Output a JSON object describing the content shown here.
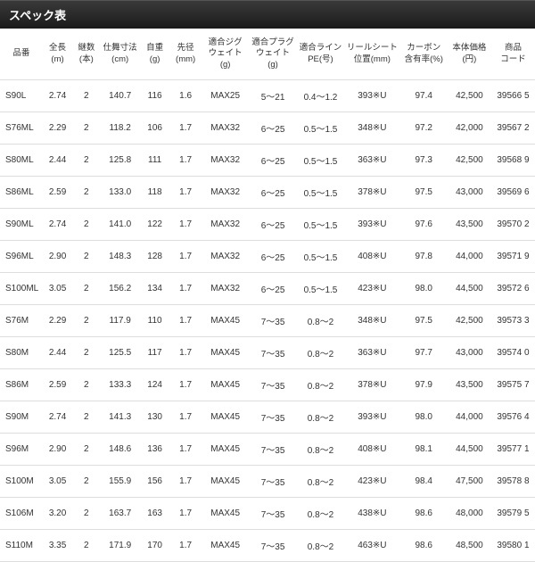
{
  "header_title": "スペック表",
  "columns": [
    {
      "l1": "品番",
      "l2": ""
    },
    {
      "l1": "全長",
      "l2": "(m)"
    },
    {
      "l1": "継数",
      "l2": "(本)"
    },
    {
      "l1": "仕舞寸法",
      "l2": "(cm)"
    },
    {
      "l1": "自重",
      "l2": "(g)"
    },
    {
      "l1": "先径",
      "l2": "(mm)"
    },
    {
      "l1": "適合ジグ",
      "l2": "ウェイト(g)"
    },
    {
      "l1": "適合プラグ",
      "l2": "ウェイト(g)"
    },
    {
      "l1": "適合ライン",
      "l2": "PE(号)"
    },
    {
      "l1": "リールシート",
      "l2": "位置(mm)"
    },
    {
      "l1": "カーボン",
      "l2": "含有率(%)"
    },
    {
      "l1": "本体価格",
      "l2": "(円)"
    },
    {
      "l1": "商品",
      "l2": "コード"
    }
  ],
  "rows": [
    [
      "S90L",
      "2.74",
      "2",
      "140.7",
      "116",
      "1.6",
      "MAX25",
      "5～21",
      "0.4～1.2",
      "393※U",
      "97.4",
      "42,500",
      "39566 5"
    ],
    [
      "S76ML",
      "2.29",
      "2",
      "118.2",
      "106",
      "1.7",
      "MAX32",
      "6～25",
      "0.5～1.5",
      "348※U",
      "97.2",
      "42,000",
      "39567 2"
    ],
    [
      "S80ML",
      "2.44",
      "2",
      "125.8",
      "111",
      "1.7",
      "MAX32",
      "6～25",
      "0.5～1.5",
      "363※U",
      "97.3",
      "42,500",
      "39568 9"
    ],
    [
      "S86ML",
      "2.59",
      "2",
      "133.0",
      "118",
      "1.7",
      "MAX32",
      "6～25",
      "0.5～1.5",
      "378※U",
      "97.5",
      "43,000",
      "39569 6"
    ],
    [
      "S90ML",
      "2.74",
      "2",
      "141.0",
      "122",
      "1.7",
      "MAX32",
      "6～25",
      "0.5～1.5",
      "393※U",
      "97.6",
      "43,500",
      "39570 2"
    ],
    [
      "S96ML",
      "2.90",
      "2",
      "148.3",
      "128",
      "1.7",
      "MAX32",
      "6～25",
      "0.5～1.5",
      "408※U",
      "97.8",
      "44,000",
      "39571 9"
    ],
    [
      "S100ML",
      "3.05",
      "2",
      "156.2",
      "134",
      "1.7",
      "MAX32",
      "6～25",
      "0.5～1.5",
      "423※U",
      "98.0",
      "44,500",
      "39572 6"
    ],
    [
      "S76M",
      "2.29",
      "2",
      "117.9",
      "110",
      "1.7",
      "MAX45",
      "7～35",
      "0.8～2",
      "348※U",
      "97.5",
      "42,500",
      "39573 3"
    ],
    [
      "S80M",
      "2.44",
      "2",
      "125.5",
      "117",
      "1.7",
      "MAX45",
      "7～35",
      "0.8～2",
      "363※U",
      "97.7",
      "43,000",
      "39574 0"
    ],
    [
      "S86M",
      "2.59",
      "2",
      "133.3",
      "124",
      "1.7",
      "MAX45",
      "7～35",
      "0.8～2",
      "378※U",
      "97.9",
      "43,500",
      "39575 7"
    ],
    [
      "S90M",
      "2.74",
      "2",
      "141.3",
      "130",
      "1.7",
      "MAX45",
      "7～35",
      "0.8～2",
      "393※U",
      "98.0",
      "44,000",
      "39576 4"
    ],
    [
      "S96M",
      "2.90",
      "2",
      "148.6",
      "136",
      "1.7",
      "MAX45",
      "7～35",
      "0.8～2",
      "408※U",
      "98.1",
      "44,500",
      "39577 1"
    ],
    [
      "S100M",
      "3.05",
      "2",
      "155.9",
      "156",
      "1.7",
      "MAX45",
      "7～35",
      "0.8～2",
      "423※U",
      "98.4",
      "47,500",
      "39578 8"
    ],
    [
      "S106M",
      "3.20",
      "2",
      "163.7",
      "163",
      "1.7",
      "MAX45",
      "7～35",
      "0.8～2",
      "438※U",
      "98.6",
      "48,000",
      "39579 5"
    ],
    [
      "S110M",
      "3.35",
      "2",
      "171.9",
      "170",
      "1.7",
      "MAX45",
      "7～35",
      "0.8～2",
      "463※U",
      "98.6",
      "48,500",
      "39580 1"
    ]
  ]
}
